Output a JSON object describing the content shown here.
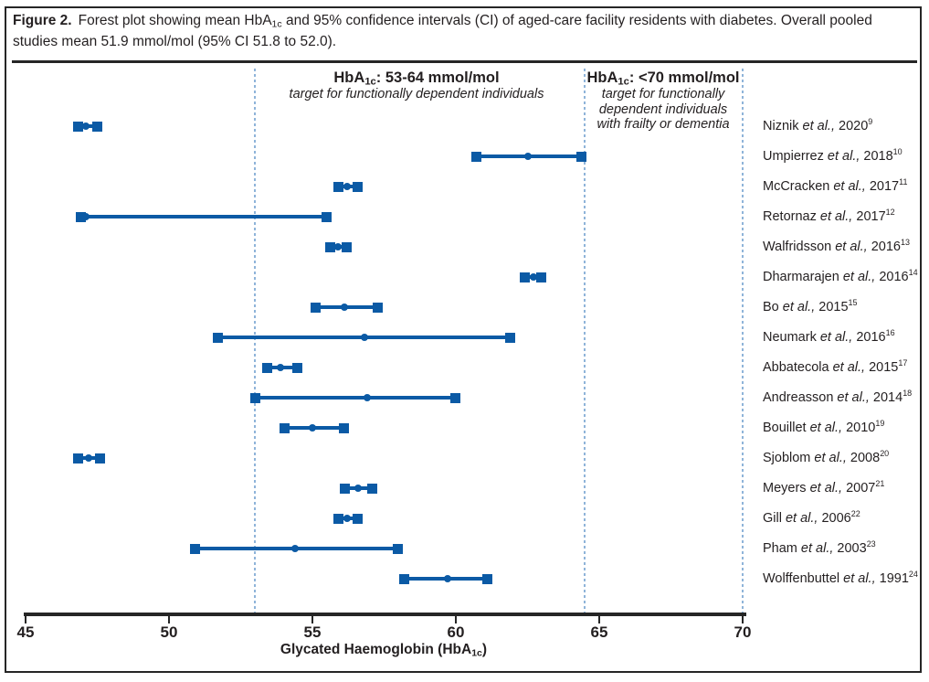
{
  "figure": {
    "label": "Figure 2.",
    "caption_pre": "Forest plot showing mean HbA",
    "caption_sub": "1c",
    "caption_post": " and 95% confidence intervals (CI) of aged-care facility residents with diabetes. Overall pooled studies mean 51.9 mmol/mol (95% CI 51.8 to 52.0)."
  },
  "chart_data": {
    "type": "scatter",
    "variant": "forest-plot",
    "xlabel": "Glycated Haemoglobin (HbA1c)",
    "xlabel_pre": "Glycated Haemoglobin (HbA",
    "xlabel_sub": "1c",
    "xlabel_post": ")",
    "xlim": [
      45,
      70
    ],
    "xticks": [
      45,
      50,
      55,
      60,
      65,
      70
    ],
    "grid": false,
    "etal": "et al.,",
    "pooled": {
      "mean": 51.9,
      "ci_low": 51.8,
      "ci_high": 52.0,
      "unit": "mmol/mol"
    },
    "reference_lines": [
      {
        "x": 53
      },
      {
        "x": 64.5
      },
      {
        "x": 70
      }
    ],
    "annotations": [
      {
        "title": "HbA1c: 53-64 mmol/mol",
        "title_pre": "HbA",
        "title_sub": "1c",
        "title_post": ": 53-64 mmol/mol",
        "subtitle_lines": [
          "target for functionally dependent individuals"
        ]
      },
      {
        "title": "HbA1c: <70 mmol/mol",
        "title_pre": "HbA",
        "title_sub": "1c",
        "title_post": ": <70 mmol/mol",
        "subtitle_lines": [
          "target for functionally",
          "dependent individuals",
          "with frailty or dementia"
        ]
      }
    ],
    "studies": [
      {
        "author": "Niznik",
        "year": "2020",
        "ref": "9",
        "mean": 47.1,
        "ci_low": 46.8,
        "ci_high": 47.5
      },
      {
        "author": "Umpierrez",
        "year": "2018",
        "ref": "10",
        "mean": 62.5,
        "ci_low": 60.7,
        "ci_high": 64.4
      },
      {
        "author": "McCracken",
        "year": "2017",
        "ref": "11",
        "mean": 56.2,
        "ci_low": 55.9,
        "ci_high": 56.6
      },
      {
        "author": "Retornaz",
        "year": "2017",
        "ref": "12",
        "mean": 47.1,
        "ci_low": 46.9,
        "ci_high": 55.5
      },
      {
        "author": "Walfridsson",
        "year": "2016",
        "ref": "13",
        "mean": 55.9,
        "ci_low": 55.6,
        "ci_high": 56.2
      },
      {
        "author": "Dharmarajen",
        "year": "2016",
        "ref": "14",
        "mean": 62.7,
        "ci_low": 62.4,
        "ci_high": 63.0
      },
      {
        "author": "Bo",
        "year": "2015",
        "ref": "15",
        "mean": 56.1,
        "ci_low": 55.1,
        "ci_high": 57.3
      },
      {
        "author": "Neumark",
        "year": "2016",
        "ref": "16",
        "mean": 56.8,
        "ci_low": 51.7,
        "ci_high": 61.9
      },
      {
        "author": "Abbatecola",
        "year": "2015",
        "ref": "17",
        "mean": 53.9,
        "ci_low": 53.4,
        "ci_high": 54.5
      },
      {
        "author": "Andreasson",
        "year": "2014",
        "ref": "18",
        "mean": 56.9,
        "ci_low": 53.0,
        "ci_high": 60.0
      },
      {
        "author": "Bouillet",
        "year": "2010",
        "ref": "19",
        "mean": 55.0,
        "ci_low": 54.0,
        "ci_high": 56.1
      },
      {
        "author": "Sjoblom",
        "year": "2008",
        "ref": "20",
        "mean": 47.2,
        "ci_low": 46.8,
        "ci_high": 47.6
      },
      {
        "author": "Meyers",
        "year": "2007",
        "ref": "21",
        "mean": 56.6,
        "ci_low": 56.1,
        "ci_high": 57.1
      },
      {
        "author": "Gill",
        "year": "2006",
        "ref": "22",
        "mean": 56.2,
        "ci_low": 55.9,
        "ci_high": 56.6
      },
      {
        "author": "Pham",
        "year": "2003",
        "ref": "23",
        "mean": 54.4,
        "ci_low": 50.9,
        "ci_high": 58.0
      },
      {
        "author": "Wolffenbuttel",
        "year": "1991",
        "ref": "24",
        "mean": 59.7,
        "ci_low": 58.2,
        "ci_high": 61.1
      }
    ],
    "colors": {
      "marker_blue": "#0b5aa5",
      "reference_line_blue": "#8fb4d9",
      "axis_black": "#262626",
      "text_black": "#231f20"
    }
  }
}
